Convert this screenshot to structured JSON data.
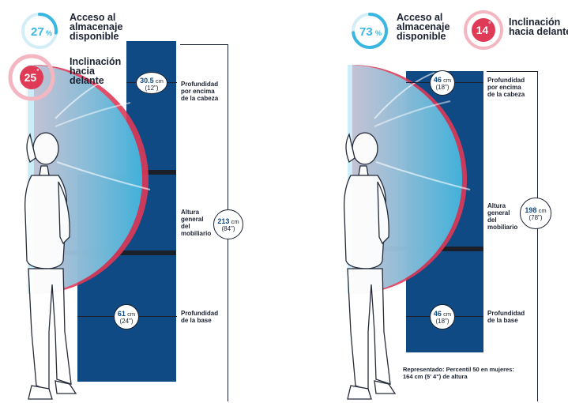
{
  "left": {
    "access": {
      "value": "27",
      "unit": "%",
      "fraction": 0.27,
      "label_line1": "Acceso al",
      "label_line2": "almacenaje",
      "label_line3": "disponible"
    },
    "tilt": {
      "value": "25",
      "unit": "°",
      "label_line1": "Inclinación",
      "label_line2": "hacia",
      "label_line3": "delante"
    },
    "top_depth": {
      "value": "30.5",
      "unit": "cm",
      "imperial": "(12\")",
      "label_line1": "Profundidad",
      "label_line2": "por encima",
      "label_line3": "de la cabeza"
    },
    "height": {
      "value": "213",
      "unit": "cm",
      "imperial": "(84\")",
      "label_line1": "Altura",
      "label_line2": "general",
      "label_line3": "del",
      "label_line4": "mobiliario"
    },
    "base_depth": {
      "value": "61",
      "unit": "cm",
      "imperial": "(24\")",
      "label_line1": "Profundidad",
      "label_line2": "de la base"
    }
  },
  "right": {
    "access": {
      "value": "73",
      "unit": "%",
      "fraction": 0.73,
      "label_line1": "Acceso al",
      "label_line2": "almacenaje",
      "label_line3": "disponible"
    },
    "tilt": {
      "value": "14",
      "unit": "°",
      "label_line1": "Inclinación",
      "label_line2": "hacia delante"
    },
    "top_depth": {
      "value": "46",
      "unit": "cm",
      "imperial": "(18\")",
      "label_line1": "Profundidad",
      "label_line2": "por encima",
      "label_line3": "de la cabeza"
    },
    "height": {
      "value": "198",
      "unit": "cm",
      "imperial": "(78\")",
      "label_line1": "Altura",
      "label_line2": "general",
      "label_line3": "del",
      "label_line4": "mobiliario"
    },
    "base_depth": {
      "value": "46",
      "unit": "cm",
      "imperial": "(18\")",
      "label_line1": "Profundidad",
      "label_line2": "de la base"
    },
    "note_line1": "Representado: Percentil 50 en mujeres:",
    "note_line2": "164 cm (5' 4\") de altura"
  },
  "colors": {
    "navy": "#0f4a84",
    "accent_blue": "#3ab7e0",
    "accent_red": "#df3a56",
    "ink": "#1b2130"
  }
}
